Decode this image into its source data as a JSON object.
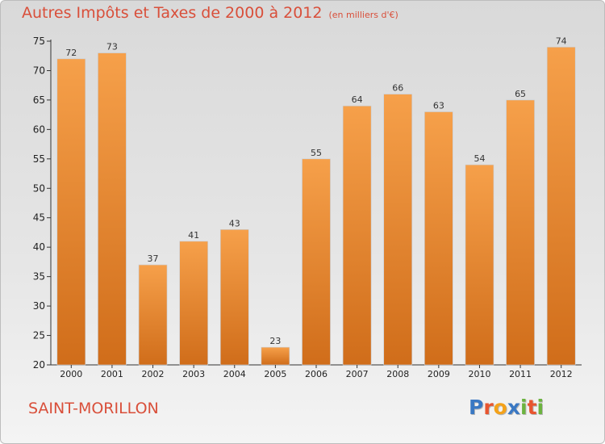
{
  "header": {
    "title": "Autres Impôts et Taxes de 2000 à 2012",
    "subtitle": "(en milliers d'€)"
  },
  "footer": {
    "commune": "SAINT-MORILLON",
    "logo_letters": [
      "P",
      "r",
      "o",
      "x",
      "i",
      "t",
      "i"
    ],
    "logo_colors": [
      "#3a78c3",
      "#e8552f",
      "#f4a21a",
      "#3a78c3",
      "#6cb33f",
      "#e8552f",
      "#6cb33f"
    ]
  },
  "chart_data": {
    "type": "bar",
    "categories": [
      "2000",
      "2001",
      "2002",
      "2003",
      "2004",
      "2005",
      "2006",
      "2007",
      "2008",
      "2009",
      "2010",
      "2011",
      "2012"
    ],
    "values": [
      72,
      73,
      37,
      41,
      43,
      23,
      55,
      64,
      66,
      63,
      54,
      65,
      74
    ],
    "ylim": [
      20,
      75
    ],
    "yticks": [
      20,
      25,
      30,
      35,
      40,
      45,
      50,
      55,
      60,
      65,
      70,
      75
    ],
    "grid": false,
    "colors": {
      "bar_top": "#f6a04a",
      "bar_bottom": "#d06d1a",
      "axis": "#333333"
    }
  }
}
